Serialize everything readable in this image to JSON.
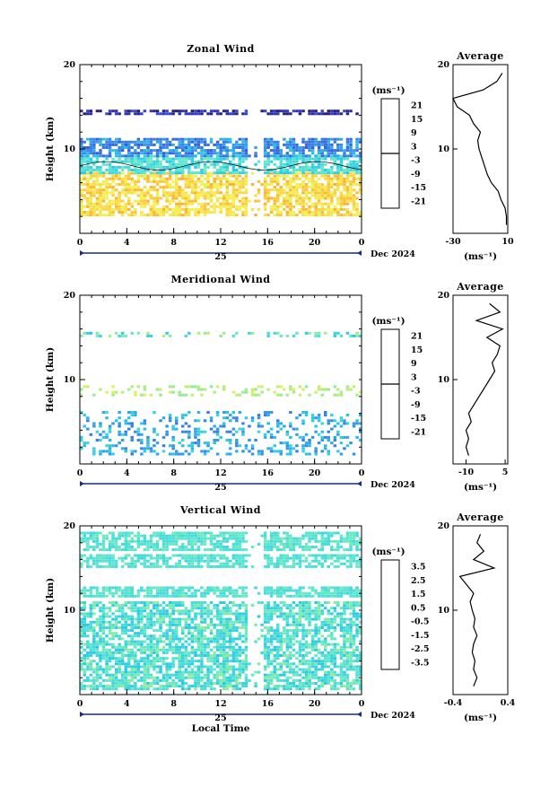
{
  "chart_data": [
    {
      "type": "heatmap",
      "title": "Zonal Wind",
      "ylabel": "Height (km)",
      "xlabel": "",
      "ylim": [
        0,
        20
      ],
      "xlim": [
        0,
        24
      ],
      "yticks": [
        "20",
        "10"
      ],
      "xticks": [
        "0",
        "4",
        "8",
        "12",
        "16",
        "20",
        "0"
      ],
      "date_day": "25",
      "date_month": "Dec 2024",
      "unit": "(ms⁻¹)",
      "colorbar_ticks": [
        "21",
        "15",
        "9",
        "3",
        "-3",
        "-9",
        "-15",
        "-21"
      ],
      "colorbar_range": [
        -24,
        24
      ],
      "contour_level": 0,
      "profile": {
        "title": "Average",
        "xlim": [
          -30,
          10
        ],
        "xticks": [
          "-30",
          "10"
        ],
        "unit": "(ms⁻¹)",
        "heights": [
          1,
          2,
          3,
          4,
          5,
          6,
          7,
          8,
          9,
          10,
          11,
          12,
          13,
          14,
          15,
          16,
          17,
          18,
          19
        ],
        "values": [
          9,
          9,
          8,
          5,
          3,
          -2,
          -5,
          -7,
          -9,
          -11,
          -12,
          -10,
          -15,
          -18,
          -27,
          -30,
          -8,
          2,
          6
        ]
      },
      "bands": [
        {
          "y": [
            2,
            7
          ],
          "value_range": [
            9,
            15
          ]
        },
        {
          "y": [
            7,
            9
          ],
          "value_range": [
            -6,
            2
          ]
        },
        {
          "y": [
            9,
            11
          ],
          "value_range": [
            -15,
            -6
          ]
        },
        {
          "y": [
            14,
            14.5
          ],
          "value_range": [
            -24,
            -16
          ]
        }
      ]
    },
    {
      "type": "heatmap",
      "title": "Meridional Wind",
      "ylabel": "Height (km)",
      "xlabel": "",
      "ylim": [
        0,
        20
      ],
      "xlim": [
        0,
        24
      ],
      "yticks": [
        "20",
        "10"
      ],
      "xticks": [
        "0",
        "4",
        "8",
        "12",
        "16",
        "20",
        "0"
      ],
      "date_day": "25",
      "date_month": "Dec 2024",
      "unit": "(ms⁻¹)",
      "colorbar_ticks": [
        "21",
        "15",
        "9",
        "3",
        "-3",
        "-9",
        "-15",
        "-21"
      ],
      "colorbar_range": [
        -24,
        24
      ],
      "contour_level": 0,
      "profile": {
        "title": "Average",
        "xlim": [
          -15,
          6
        ],
        "xticks": [
          "-10",
          "5"
        ],
        "unit": "(ms⁻¹)",
        "heights": [
          1,
          2,
          3,
          4,
          5,
          6,
          7,
          8,
          9,
          10,
          11,
          12,
          13,
          14,
          15,
          16,
          17,
          18,
          19
        ],
        "values": [
          -9,
          -10,
          -9,
          -10,
          -8,
          -9,
          -7,
          -5,
          -3,
          -1,
          1,
          0,
          2,
          3,
          -2,
          4,
          -6,
          3,
          -1
        ]
      },
      "bands": [
        {
          "y": [
            1,
            6
          ],
          "value_range": [
            -12,
            -3
          ]
        },
        {
          "y": [
            8,
            9
          ],
          "value_range": [
            3,
            9
          ]
        },
        {
          "y": [
            15,
            15.5
          ],
          "value_range": [
            -6,
            6
          ]
        }
      ]
    },
    {
      "type": "heatmap",
      "title": "Vertical Wind",
      "ylabel": "Height (km)",
      "xlabel": "Local Time",
      "ylim": [
        0,
        20
      ],
      "xlim": [
        0,
        24
      ],
      "yticks": [
        "20",
        "10"
      ],
      "xticks": [
        "0",
        "4",
        "8",
        "12",
        "16",
        "20",
        "0"
      ],
      "date_day": "25",
      "date_month": "Dec 2024",
      "unit": "(ms⁻¹)",
      "colorbar_ticks": [
        "3.5",
        "2.5",
        "1.5",
        "0.5",
        "-0.5",
        "-1.5",
        "-2.5",
        "-3.5"
      ],
      "colorbar_range": [
        -4,
        4
      ],
      "contour_level": null,
      "profile": {
        "title": "Average",
        "xlim": [
          -0.4,
          0.4
        ],
        "xticks": [
          "-0.4",
          "0.4"
        ],
        "unit": "(ms⁻¹)",
        "heights": [
          1,
          2,
          3,
          4,
          5,
          6,
          7,
          8,
          9,
          10,
          11,
          12,
          13,
          14,
          15,
          16,
          17,
          18,
          19
        ],
        "values": [
          -0.1,
          -0.05,
          -0.1,
          -0.08,
          -0.12,
          -0.1,
          -0.05,
          -0.1,
          -0.08,
          -0.12,
          -0.15,
          -0.1,
          -0.2,
          -0.3,
          0.2,
          -0.1,
          0.05,
          -0.05,
          0.0
        ]
      },
      "bands": [
        {
          "y": [
            0.5,
            11
          ],
          "value_range": [
            -1,
            0.6
          ]
        },
        {
          "y": [
            11.5,
            12.5
          ],
          "value_range": [
            -0.5,
            0.3
          ]
        },
        {
          "y": [
            15,
            16.5
          ],
          "value_range": [
            -0.5,
            0.3
          ]
        },
        {
          "y": [
            17,
            19
          ],
          "value_range": [
            -0.5,
            0.3
          ]
        }
      ]
    }
  ]
}
